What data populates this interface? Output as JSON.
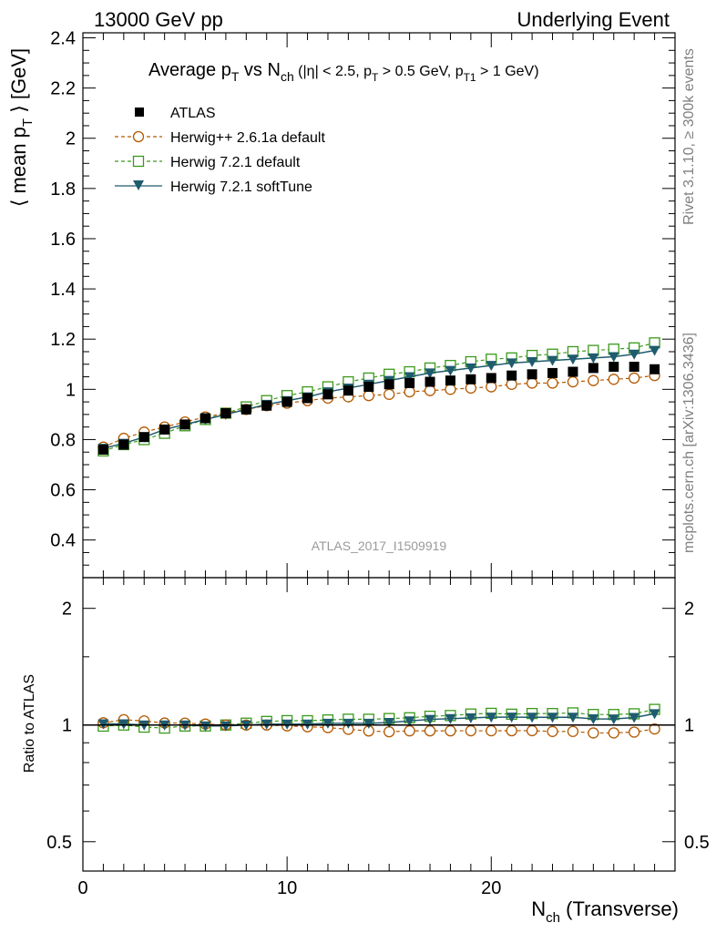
{
  "header": {
    "left": "13000 GeV pp",
    "right": "Underlying Event"
  },
  "side_labels": {
    "rivet": "Rivet 3.1.10, ≥ 300k events",
    "mcplots": "mcplots.cern.ch [arXiv:1306.3436]"
  },
  "chart_data": {
    "type": "scatter",
    "title": {
      "main": "Average p",
      "sub_T": "T",
      "vs": " vs N",
      "sub_ch": "ch",
      "cuts_a": " (|η| < 2.5, p",
      "cuts_b": " > 0.5 GeV, p",
      "sub_T1": "T1",
      "cuts_c": " > 1 GeV)"
    },
    "analysis_tag": "ATLAS_2017_I1509919",
    "ylabel": {
      "a": "⟨ mean p",
      "sub": "T",
      "b": " ⟩ [GeV]"
    },
    "ratio_ylabel": "Ratio to ATLAS",
    "xlabel": {
      "a": "N",
      "sub": "ch",
      "b": " (Transverse)"
    },
    "xlim": [
      0,
      29
    ],
    "ylim": [
      0.25,
      2.42
    ],
    "ratio_ylim": [
      0.42,
      2.4
    ],
    "xticks": [
      "0",
      "10",
      "20"
    ],
    "yticks": [
      "0.4",
      "0.6",
      "0.8",
      "1",
      "1.2",
      "1.4",
      "1.6",
      "1.8",
      "2",
      "2.2",
      "2.4"
    ],
    "ratio_yticks": [
      "0.5",
      "1",
      "2"
    ],
    "x": [
      1,
      2,
      3,
      4,
      5,
      6,
      7,
      8,
      9,
      10,
      11,
      12,
      13,
      14,
      15,
      16,
      17,
      18,
      19,
      20,
      21,
      22,
      23,
      24,
      25,
      26,
      27,
      28
    ],
    "series": [
      {
        "name": "ATLAS",
        "marker": "filled-square",
        "color": "#000000",
        "values": [
          0.76,
          0.78,
          0.81,
          0.84,
          0.86,
          0.885,
          0.905,
          0.92,
          0.935,
          0.95,
          0.965,
          0.98,
          0.995,
          1.01,
          1.02,
          1.025,
          1.03,
          1.035,
          1.04,
          1.045,
          1.055,
          1.06,
          1.065,
          1.07,
          1.085,
          1.09,
          1.09,
          1.08
        ]
      },
      {
        "name": "Herwig++ 2.6.1a default",
        "marker": "open-circle",
        "color": "#b35900",
        "values": [
          0.77,
          0.805,
          0.83,
          0.85,
          0.87,
          0.89,
          0.905,
          0.92,
          0.935,
          0.945,
          0.955,
          0.965,
          0.97,
          0.975,
          0.98,
          0.99,
          0.995,
          1.0,
          1.005,
          1.01,
          1.02,
          1.025,
          1.025,
          1.03,
          1.035,
          1.04,
          1.045,
          1.055
        ]
      },
      {
        "name": "Herwig 7.2.1 default",
        "marker": "open-square",
        "color": "#3a9a1b",
        "values": [
          0.755,
          0.78,
          0.8,
          0.825,
          0.855,
          0.88,
          0.905,
          0.93,
          0.955,
          0.975,
          0.99,
          1.01,
          1.03,
          1.045,
          1.06,
          1.07,
          1.085,
          1.095,
          1.11,
          1.12,
          1.125,
          1.135,
          1.14,
          1.15,
          1.155,
          1.16,
          1.165,
          1.185
        ]
      },
      {
        "name": "Herwig 7.2.1 softTune",
        "marker": "filled-triangle-down",
        "color": "#1f5b6f",
        "values": [
          0.765,
          0.785,
          0.81,
          0.84,
          0.86,
          0.88,
          0.9,
          0.92,
          0.94,
          0.955,
          0.97,
          0.99,
          1.005,
          1.02,
          1.035,
          1.05,
          1.065,
          1.075,
          1.085,
          1.095,
          1.105,
          1.11,
          1.115,
          1.12,
          1.125,
          1.13,
          1.14,
          1.155
        ]
      }
    ]
  }
}
